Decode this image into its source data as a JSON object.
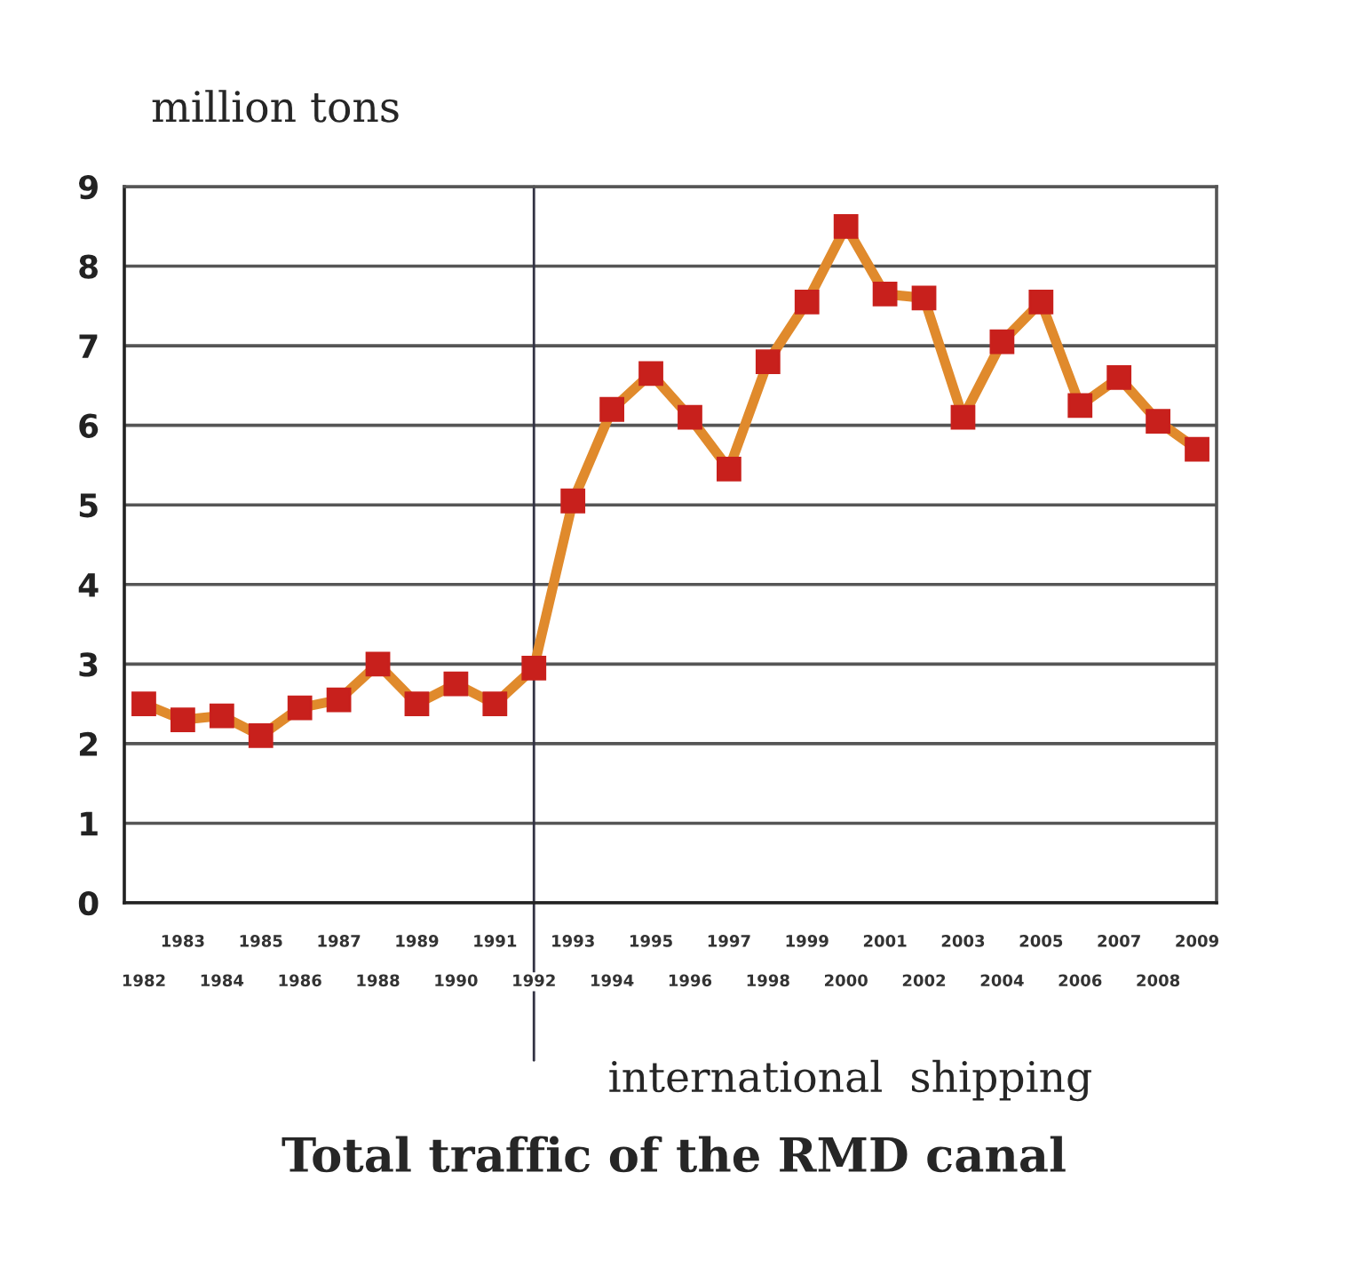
{
  "chart_data": {
    "type": "line",
    "title": "Total traffic of the RMD canal",
    "ylabel": "million tons",
    "categories": [
      "1982",
      "1983",
      "1984",
      "1985",
      "1986",
      "1987",
      "1988",
      "1989",
      "1990",
      "1991",
      "1992",
      "1993",
      "1994",
      "1995",
      "1996",
      "1997",
      "1998",
      "1999",
      "2000",
      "2001",
      "2002",
      "2003",
      "2004",
      "2005",
      "2006",
      "2007",
      "2008",
      "2009"
    ],
    "series": [
      {
        "color": "#e08a2c",
        "values": [
          2.5,
          2.3,
          2.35,
          2.1,
          2.45,
          2.55,
          3.0,
          2.5,
          2.75,
          2.5,
          2.95,
          5.05,
          6.2,
          6.65,
          6.1,
          5.45,
          6.8,
          7.55,
          8.5,
          7.65,
          7.6,
          6.1,
          7.05,
          7.55,
          6.25,
          6.6,
          6.05,
          5.7
        ]
      }
    ],
    "ylim": [
      0,
      9
    ],
    "yticks": [
      0,
      1,
      2,
      3,
      4,
      5,
      6,
      7,
      8,
      9
    ],
    "grid": "y",
    "marker": "square",
    "line_style": "solid",
    "legend": false,
    "ref_lines": [
      {
        "axis": "x",
        "value": "1992",
        "label": "international  shipping",
        "color": "#333344"
      }
    ]
  }
}
